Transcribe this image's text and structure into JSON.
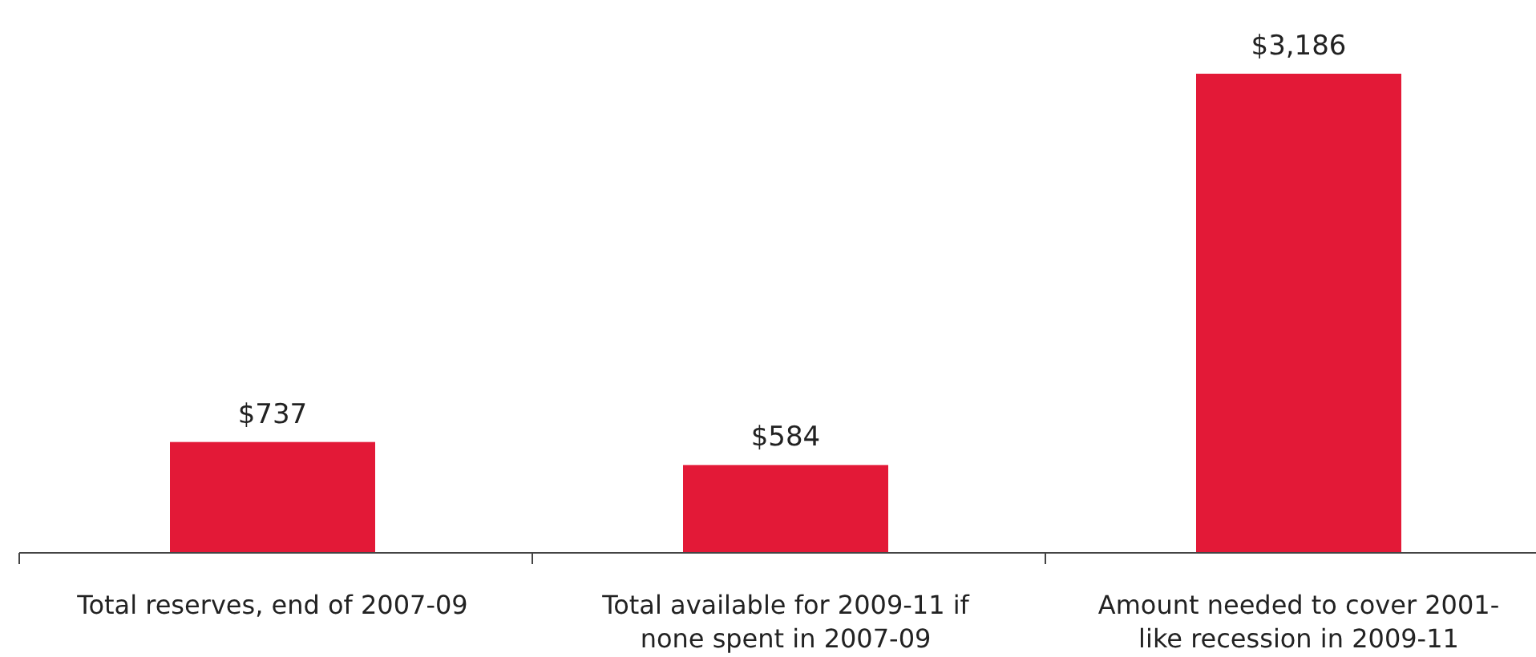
{
  "chart_data": {
    "type": "bar",
    "categories": [
      "Total reserves, end of 2007-09",
      "Total available for 2009-11 if none spent in 2007-09",
      "Amount needed to cover 2001-like recession in 2009-11"
    ],
    "values": [
      737,
      584,
      3186
    ],
    "value_labels": [
      "$737",
      "$584",
      "$3,186"
    ],
    "color": "#e31937"
  }
}
